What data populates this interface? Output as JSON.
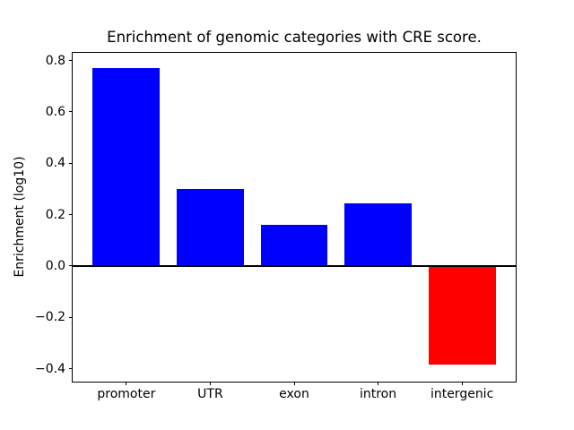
{
  "chart_data": {
    "type": "bar",
    "title": "Enrichment of genomic categories with CRE score.",
    "xlabel": "",
    "ylabel": "Enrichment (log10)",
    "categories": [
      "promoter",
      "UTR",
      "exon",
      "intron",
      "intergenic"
    ],
    "values": [
      0.77,
      0.3,
      0.16,
      0.245,
      -0.385
    ],
    "bar_colors": [
      "#0000ff",
      "#0000ff",
      "#0000ff",
      "#0000ff",
      "#ff0000"
    ],
    "positive_color": "#0000ff",
    "negative_color": "#ff0000",
    "bar_width": 0.8,
    "xlim": [
      -0.64,
      4.64
    ],
    "ylim": [
      -0.45,
      0.83
    ],
    "yticks": [
      0.8,
      0.6,
      0.4,
      0.2,
      0.0,
      -0.2,
      -0.4
    ],
    "ytick_labels": [
      "0.8",
      "0.6",
      "0.4",
      "0.2",
      "0.0",
      "−0.2",
      "−0.4"
    ],
    "zero_line": true,
    "grid": false,
    "legend": null,
    "background": "#ffffff",
    "axis_color": "#000000"
  }
}
